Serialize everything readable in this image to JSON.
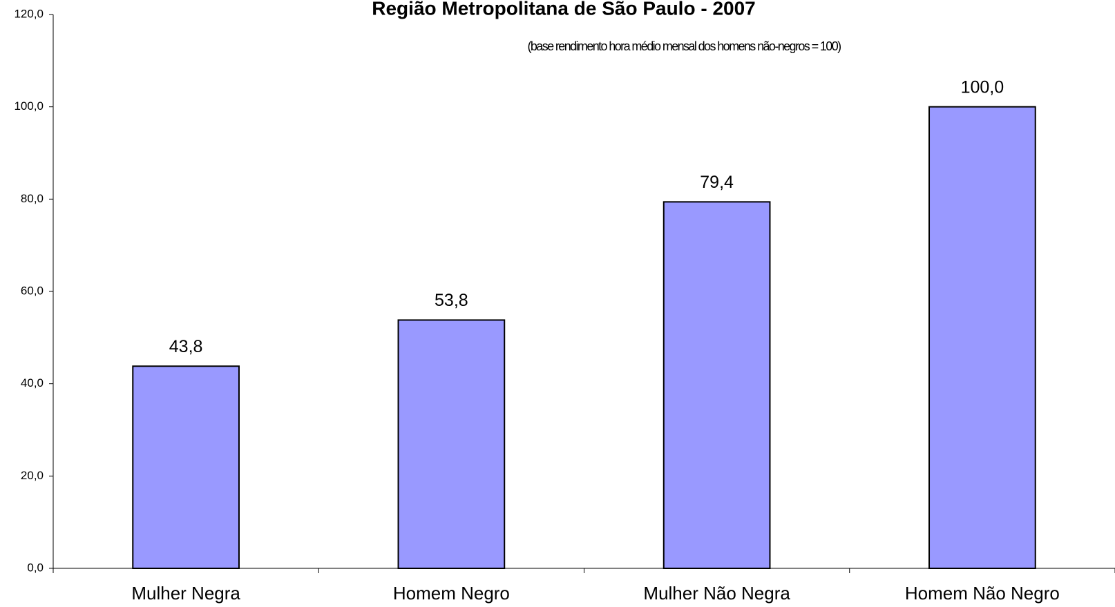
{
  "chart_data": {
    "type": "bar",
    "title": "Região Metropolitana de São Paulo - 2007",
    "subtitle": "(base rendimento hora médio mensal dos homens não-negros = 100)",
    "categories": [
      "Mulher Negra",
      "Homem Negro",
      "Mulher Não Negra",
      "Homem Não Negro"
    ],
    "values": [
      43.8,
      53.8,
      79.4,
      100.0
    ],
    "value_labels": [
      "43,8",
      "53,8",
      "79,4",
      "100,0"
    ],
    "color": "#9999ff",
    "ylim": [
      0,
      120
    ],
    "yticks": [
      {
        "value": 0,
        "label": "0,0"
      },
      {
        "value": 20,
        "label": "20,0"
      },
      {
        "value": 40,
        "label": "40,0"
      },
      {
        "value": 60,
        "label": "60,0"
      },
      {
        "value": 80,
        "label": "80,0"
      },
      {
        "value": 100,
        "label": "100,0"
      },
      {
        "value": 120,
        "label": "120,0"
      }
    ],
    "grid": false
  }
}
